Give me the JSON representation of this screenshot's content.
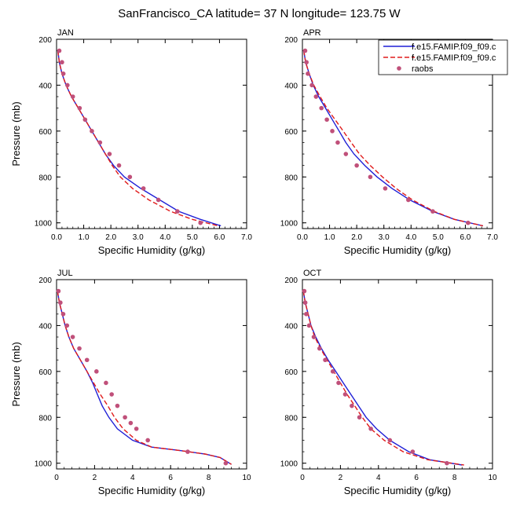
{
  "figure": {
    "title": "SanFrancisco_CA  latitude= 37 N longitude= 123.75 W"
  },
  "legend": {
    "placement": "top-right of APR panel",
    "items": [
      {
        "label": "f.e15.FAMIP.f09_f09.c",
        "style": "solid",
        "color": "#1f1fd6"
      },
      {
        "label": "f.e15.FAMIP.f09_f09.c",
        "style": "dashed",
        "color": "#e01b1b"
      },
      {
        "label": "raobs",
        "style": "marker",
        "color": "#c0507a"
      }
    ]
  },
  "colors": {
    "series1": "#1f1fd6",
    "series2": "#e01b1b",
    "obs": "#c0507a"
  },
  "chart_data": [
    {
      "type": "line",
      "title": "JAN",
      "xlabel": "Specific Humidity (g/kg)",
      "ylabel": "Pressure (mb)",
      "xlim": [
        0,
        7
      ],
      "xticks": [
        "0.0",
        "1.0",
        "2.0",
        "3.0",
        "4.0",
        "5.0",
        "6.0",
        "7.0"
      ],
      "xtick_values": [
        0,
        1,
        2,
        3,
        4,
        5,
        6,
        7
      ],
      "ylim": [
        200,
        1025
      ],
      "y_reversed": true,
      "yticks": [
        "200",
        "400",
        "600",
        "800",
        "1000"
      ],
      "ytick_values": [
        200,
        400,
        600,
        800,
        1000
      ],
      "series": [
        {
          "style": "solid",
          "points": [
            [
              0.05,
              250
            ],
            [
              0.1,
              300
            ],
            [
              0.2,
              350
            ],
            [
              0.35,
              400
            ],
            [
              0.55,
              450
            ],
            [
              0.8,
              500
            ],
            [
              1.05,
              550
            ],
            [
              1.3,
              600
            ],
            [
              1.55,
              650
            ],
            [
              1.8,
              700
            ],
            [
              2.1,
              750
            ],
            [
              2.5,
              800
            ],
            [
              3.1,
              850
            ],
            [
              3.8,
              900
            ],
            [
              4.5,
              950
            ],
            [
              5.3,
              985
            ],
            [
              6.05,
              1013
            ]
          ]
        },
        {
          "style": "dashed",
          "points": [
            [
              0.05,
              250
            ],
            [
              0.1,
              300
            ],
            [
              0.2,
              350
            ],
            [
              0.35,
              400
            ],
            [
              0.55,
              450
            ],
            [
              0.8,
              500
            ],
            [
              1.05,
              550
            ],
            [
              1.3,
              600
            ],
            [
              1.55,
              650
            ],
            [
              1.8,
              700
            ],
            [
              2.05,
              750
            ],
            [
              2.35,
              800
            ],
            [
              2.8,
              850
            ],
            [
              3.4,
              900
            ],
            [
              4.2,
              950
            ],
            [
              5.0,
              985
            ],
            [
              5.95,
              1013
            ]
          ]
        },
        {
          "style": "marker",
          "points": [
            [
              0.1,
              250
            ],
            [
              0.2,
              300
            ],
            [
              0.25,
              350
            ],
            [
              0.4,
              400
            ],
            [
              0.6,
              450
            ],
            [
              0.85,
              500
            ],
            [
              1.05,
              550
            ],
            [
              1.3,
              600
            ],
            [
              1.6,
              650
            ],
            [
              1.95,
              700
            ],
            [
              2.3,
              750
            ],
            [
              2.7,
              800
            ],
            [
              3.2,
              850
            ],
            [
              3.75,
              900
            ],
            [
              4.45,
              950
            ],
            [
              5.3,
              1000
            ]
          ]
        }
      ]
    },
    {
      "type": "line",
      "title": "APR",
      "xlabel": "Specific Humidity (g/kg)",
      "ylabel": "",
      "xlim": [
        0,
        7
      ],
      "xticks": [
        "0.0",
        "1.0",
        "2.0",
        "3.0",
        "4.0",
        "5.0",
        "6.0",
        "7.0"
      ],
      "xtick_values": [
        0,
        1,
        2,
        3,
        4,
        5,
        6,
        7
      ],
      "ylim": [
        200,
        1025
      ],
      "y_reversed": true,
      "yticks": [
        "200",
        "400",
        "600",
        "800",
        "1000"
      ],
      "ytick_values": [
        200,
        400,
        600,
        800,
        1000
      ],
      "series": [
        {
          "style": "solid",
          "points": [
            [
              0.05,
              250
            ],
            [
              0.12,
              300
            ],
            [
              0.25,
              350
            ],
            [
              0.4,
              400
            ],
            [
              0.6,
              450
            ],
            [
              0.85,
              500
            ],
            [
              1.1,
              550
            ],
            [
              1.35,
              600
            ],
            [
              1.6,
              650
            ],
            [
              1.9,
              700
            ],
            [
              2.3,
              750
            ],
            [
              2.75,
              800
            ],
            [
              3.3,
              850
            ],
            [
              3.95,
              900
            ],
            [
              4.8,
              950
            ],
            [
              5.6,
              985
            ],
            [
              6.65,
              1013
            ]
          ]
        },
        {
          "style": "dashed",
          "points": [
            [
              0.05,
              250
            ],
            [
              0.12,
              300
            ],
            [
              0.25,
              350
            ],
            [
              0.42,
              400
            ],
            [
              0.65,
              450
            ],
            [
              0.9,
              500
            ],
            [
              1.2,
              550
            ],
            [
              1.5,
              600
            ],
            [
              1.8,
              650
            ],
            [
              2.1,
              700
            ],
            [
              2.5,
              750
            ],
            [
              2.95,
              800
            ],
            [
              3.45,
              850
            ],
            [
              4.05,
              900
            ],
            [
              4.85,
              950
            ],
            [
              5.6,
              985
            ],
            [
              6.65,
              1013
            ]
          ]
        },
        {
          "style": "marker",
          "points": [
            [
              0.1,
              250
            ],
            [
              0.15,
              300
            ],
            [
              0.2,
              350
            ],
            [
              0.35,
              400
            ],
            [
              0.5,
              450
            ],
            [
              0.7,
              500
            ],
            [
              0.9,
              550
            ],
            [
              1.1,
              600
            ],
            [
              1.3,
              650
            ],
            [
              1.6,
              700
            ],
            [
              2.0,
              750
            ],
            [
              2.5,
              800
            ],
            [
              3.05,
              850
            ],
            [
              3.9,
              900
            ],
            [
              4.8,
              950
            ],
            [
              6.1,
              1000
            ]
          ]
        }
      ]
    },
    {
      "type": "line",
      "title": "JUL",
      "xlabel": "Specific Humidity (g/kg)",
      "ylabel": "Pressure (mb)",
      "xlim": [
        0,
        10
      ],
      "xticks": [
        "0",
        "2",
        "4",
        "6",
        "8",
        "10"
      ],
      "xtick_values": [
        0,
        2,
        4,
        6,
        8,
        10
      ],
      "ylim": [
        200,
        1025
      ],
      "y_reversed": true,
      "yticks": [
        "200",
        "400",
        "600",
        "800",
        "1000"
      ],
      "ytick_values": [
        200,
        400,
        600,
        800,
        1000
      ],
      "series": [
        {
          "style": "solid",
          "points": [
            [
              0.05,
              250
            ],
            [
              0.15,
              300
            ],
            [
              0.3,
              350
            ],
            [
              0.45,
              400
            ],
            [
              0.65,
              450
            ],
            [
              0.9,
              500
            ],
            [
              1.25,
              550
            ],
            [
              1.6,
              600
            ],
            [
              1.9,
              650
            ],
            [
              2.15,
              700
            ],
            [
              2.4,
              750
            ],
            [
              2.75,
              800
            ],
            [
              3.2,
              850
            ],
            [
              4.0,
              900
            ],
            [
              5.0,
              930
            ],
            [
              6.5,
              945
            ],
            [
              7.8,
              960
            ],
            [
              8.6,
              975
            ],
            [
              9.2,
              1005
            ]
          ]
        },
        {
          "style": "dashed",
          "points": [
            [
              0.05,
              250
            ],
            [
              0.15,
              300
            ],
            [
              0.3,
              350
            ],
            [
              0.45,
              400
            ],
            [
              0.65,
              450
            ],
            [
              0.9,
              500
            ],
            [
              1.25,
              550
            ],
            [
              1.6,
              600
            ],
            [
              1.95,
              650
            ],
            [
              2.3,
              700
            ],
            [
              2.7,
              750
            ],
            [
              3.05,
              800
            ],
            [
              3.5,
              850
            ],
            [
              4.2,
              900
            ],
            [
              5.0,
              930
            ],
            [
              6.5,
              945
            ],
            [
              7.8,
              960
            ],
            [
              8.6,
              975
            ],
            [
              9.2,
              1005
            ]
          ]
        },
        {
          "style": "marker",
          "points": [
            [
              0.1,
              250
            ],
            [
              0.2,
              300
            ],
            [
              0.35,
              350
            ],
            [
              0.55,
              400
            ],
            [
              0.85,
              450
            ],
            [
              1.2,
              500
            ],
            [
              1.6,
              550
            ],
            [
              2.1,
              600
            ],
            [
              2.6,
              650
            ],
            [
              2.9,
              700
            ],
            [
              3.2,
              750
            ],
            [
              3.6,
              800
            ],
            [
              3.9,
              825
            ],
            [
              4.2,
              850
            ],
            [
              4.8,
              900
            ],
            [
              6.9,
              950
            ],
            [
              8.9,
              1000
            ]
          ]
        }
      ]
    },
    {
      "type": "line",
      "title": "OCT",
      "xlabel": "Specific Humidity (g/kg)",
      "ylabel": "",
      "xlim": [
        0,
        10
      ],
      "xticks": [
        "0",
        "2",
        "4",
        "6",
        "8",
        "10"
      ],
      "xtick_values": [
        0,
        2,
        4,
        6,
        8,
        10
      ],
      "ylim": [
        200,
        1025
      ],
      "y_reversed": true,
      "yticks": [
        "200",
        "400",
        "600",
        "800",
        "1000"
      ],
      "ytick_values": [
        200,
        400,
        600,
        800,
        1000
      ],
      "series": [
        {
          "style": "solid",
          "points": [
            [
              0.05,
              250
            ],
            [
              0.15,
              300
            ],
            [
              0.3,
              350
            ],
            [
              0.45,
              400
            ],
            [
              0.7,
              450
            ],
            [
              1.0,
              500
            ],
            [
              1.35,
              550
            ],
            [
              1.75,
              600
            ],
            [
              2.15,
              650
            ],
            [
              2.55,
              700
            ],
            [
              2.95,
              750
            ],
            [
              3.35,
              800
            ],
            [
              3.9,
              850
            ],
            [
              4.6,
              900
            ],
            [
              5.6,
              950
            ],
            [
              6.7,
              985
            ],
            [
              8.4,
              1008
            ]
          ]
        },
        {
          "style": "dashed",
          "points": [
            [
              0.05,
              250
            ],
            [
              0.15,
              300
            ],
            [
              0.3,
              350
            ],
            [
              0.45,
              400
            ],
            [
              0.65,
              450
            ],
            [
              0.95,
              500
            ],
            [
              1.3,
              550
            ],
            [
              1.65,
              600
            ],
            [
              2.0,
              650
            ],
            [
              2.35,
              700
            ],
            [
              2.75,
              750
            ],
            [
              3.15,
              800
            ],
            [
              3.6,
              850
            ],
            [
              4.3,
              900
            ],
            [
              5.3,
              950
            ],
            [
              6.6,
              985
            ],
            [
              8.5,
              1008
            ]
          ]
        },
        {
          "style": "marker",
          "points": [
            [
              0.1,
              250
            ],
            [
              0.15,
              300
            ],
            [
              0.2,
              350
            ],
            [
              0.35,
              400
            ],
            [
              0.6,
              450
            ],
            [
              0.9,
              500
            ],
            [
              1.2,
              550
            ],
            [
              1.6,
              600
            ],
            [
              1.9,
              650
            ],
            [
              2.25,
              700
            ],
            [
              2.6,
              750
            ],
            [
              3.0,
              800
            ],
            [
              3.6,
              850
            ],
            [
              4.6,
              900
            ],
            [
              5.8,
              950
            ],
            [
              7.6,
              1000
            ]
          ]
        }
      ]
    }
  ]
}
